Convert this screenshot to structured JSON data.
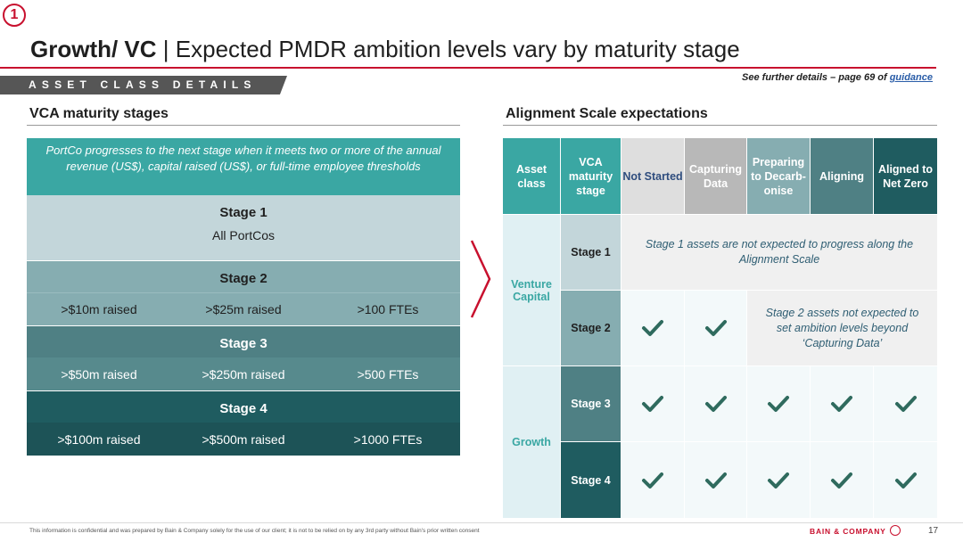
{
  "badge": "1",
  "title": {
    "bold": "Growth/ VC",
    "rest": " | Expected PMDR ambition levels vary by maturity stage"
  },
  "section_label": "ASSET CLASS DETAILS",
  "further": {
    "prefix": "See further details – page 69 of ",
    "link": "guidance"
  },
  "left": {
    "heading": "VCA maturity stages",
    "intro": "PortCo progresses to the next stage when it meets two or more of the annual revenue (US$), capital raised (US$), or full-time employee thresholds",
    "stages": [
      {
        "name": "Stage 1",
        "sub": "All PortCos"
      },
      {
        "name": "Stage 2",
        "cols": [
          ">$10m raised",
          ">$25m raised",
          ">100 FTEs"
        ]
      },
      {
        "name": "Stage 3",
        "cols": [
          ">$50m raised",
          ">$250m raised",
          ">500 FTEs"
        ]
      },
      {
        "name": "Stage 4",
        "cols": [
          ">$100m raised",
          ">$500m raised",
          ">1000 FTEs"
        ]
      }
    ]
  },
  "right": {
    "heading": "Alignment Scale expectations",
    "headers": [
      "Asset class",
      "VCA maturity stage",
      "Not Started",
      "Capturing Data",
      "Preparing to Decarb-onise",
      "Aligning",
      "Aligned to Net Zero"
    ],
    "asset_classes": [
      "Venture Capital",
      "Growth"
    ],
    "stages": [
      "Stage 1",
      "Stage 2",
      "Stage 3",
      "Stage 4"
    ],
    "stage1_note": "Stage 1 assets are not expected to progress along the Alignment Scale",
    "stage2_note": "Stage  2 assets not expected to set ambition levels beyond ‘Capturing Data’",
    "checkmark_count": {
      "stage_2": 2,
      "stage_3": 5,
      "stage_4": 5
    }
  },
  "footer": "This information is confidential and was prepared by Bain & Company solely for the use of our client; it is not to be relied on by any 3rd party without Bain's prior written consent",
  "brand": "BAIN & COMPANY",
  "page_number": "17",
  "colors": {
    "accent_red": "#c8102e",
    "teal": "#3aa7a3",
    "dark_teal": "#1f5c60",
    "check_green": "#2f6b5e"
  }
}
